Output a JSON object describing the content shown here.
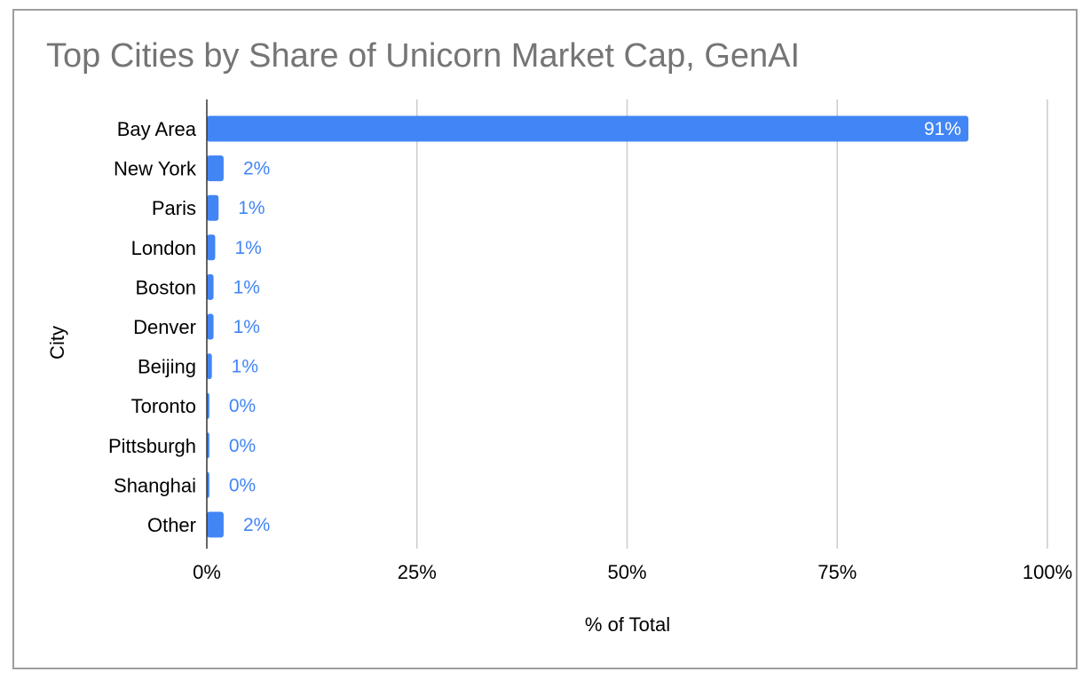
{
  "chart_data": {
    "type": "bar",
    "orientation": "horizontal",
    "title": "Top Cities by Share of Unicorn Market Cap, GenAI",
    "xlabel": "% of Total",
    "ylabel": "City",
    "categories": [
      "Bay Area",
      "New York",
      "Paris",
      "London",
      "Boston",
      "Denver",
      "Beijing",
      "Toronto",
      "Pittsburgh",
      "Shanghai",
      "Other"
    ],
    "values": [
      91,
      2,
      1,
      1,
      1,
      1,
      1,
      0,
      0,
      0,
      2
    ],
    "bar_values_precise": [
      90.6,
      2.0,
      1.4,
      1.0,
      0.8,
      0.8,
      0.6,
      0.3,
      0.3,
      0.3,
      2.0
    ],
    "data_labels": [
      "91%",
      "2%",
      "1%",
      "1%",
      "1%",
      "1%",
      "1%",
      "0%",
      "0%",
      "0%",
      "2%"
    ],
    "xlim": [
      0,
      100
    ],
    "xticks": [
      0,
      25,
      50,
      75,
      100
    ],
    "xtick_labels": [
      "0%",
      "25%",
      "50%",
      "75%",
      "100%"
    ],
    "grid": true,
    "legend": "none",
    "colors": {
      "bar": "#4285f4",
      "label_outside": "#4285f4",
      "label_inside": "#ffffff",
      "title": "#757575",
      "grid": "#cccccc",
      "axis": "#333333",
      "frame": "#9e9e9e"
    }
  }
}
